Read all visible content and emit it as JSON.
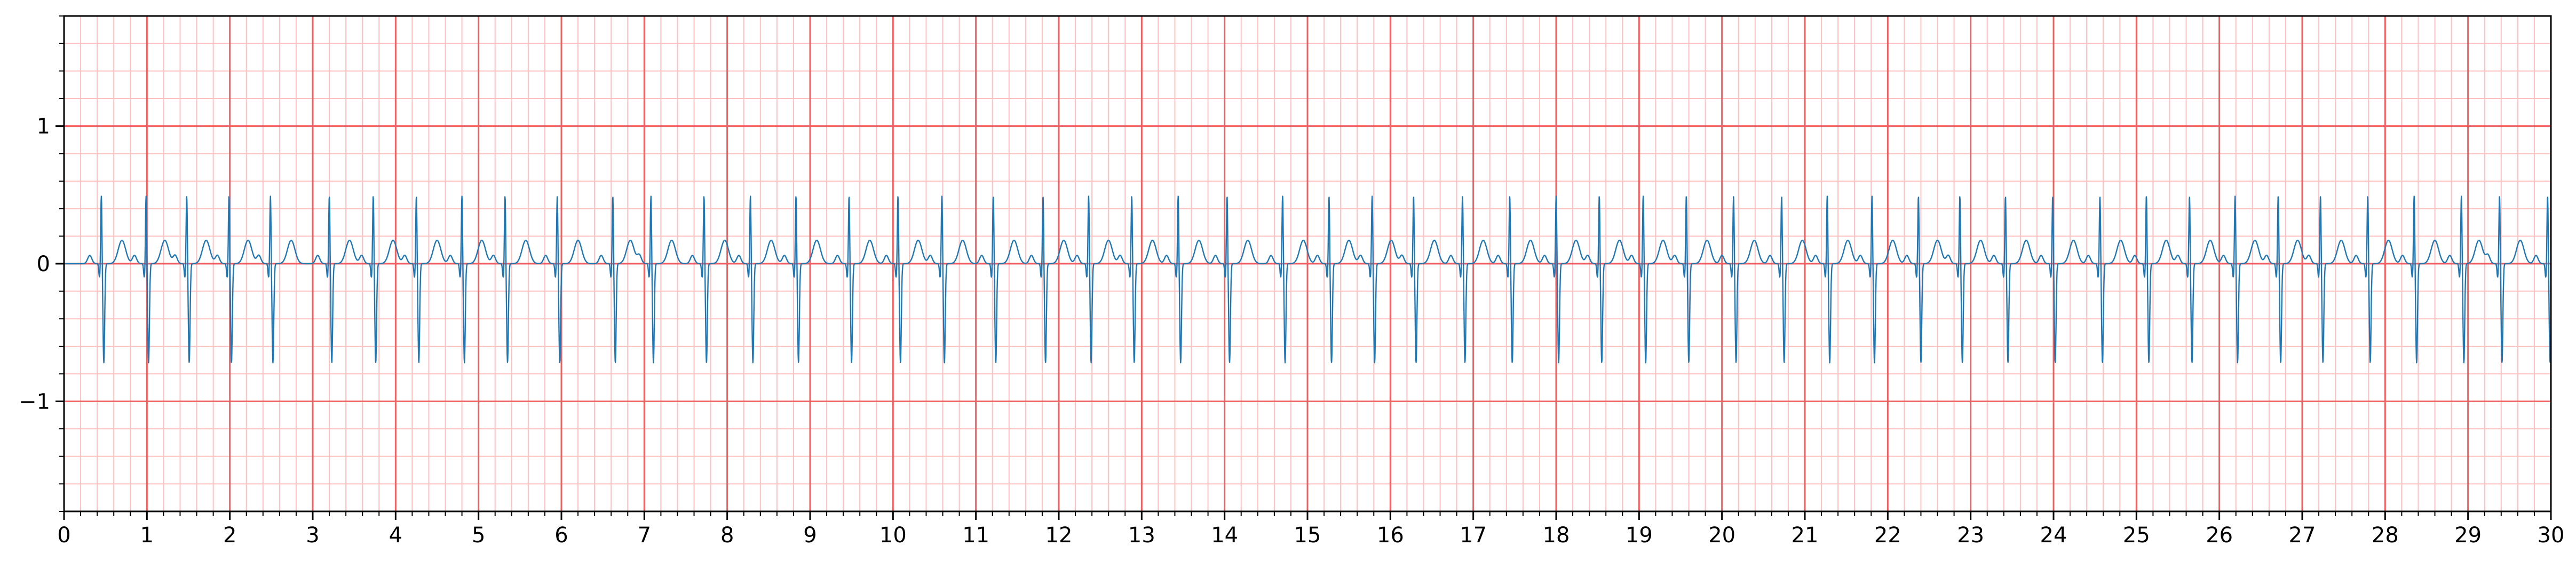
{
  "chart_data": {
    "type": "line",
    "title": "",
    "xlabel": "",
    "ylabel": "",
    "xlim": [
      0,
      30
    ],
    "ylim": [
      -1.8,
      1.8
    ],
    "grid": true,
    "legend": "none",
    "x_ticks": [
      0,
      1,
      2,
      3,
      4,
      5,
      6,
      7,
      8,
      9,
      10,
      11,
      12,
      13,
      14,
      15,
      16,
      17,
      18,
      19,
      20,
      21,
      22,
      23,
      24,
      25,
      26,
      27,
      28,
      29,
      30
    ],
    "x_tick_labels": [
      "0",
      "1",
      "2",
      "3",
      "4",
      "5",
      "6",
      "7",
      "8",
      "9",
      "10",
      "11",
      "12",
      "13",
      "14",
      "15",
      "16",
      "17",
      "18",
      "19",
      "20",
      "21",
      "22",
      "23",
      "24",
      "25",
      "26",
      "27",
      "28",
      "29",
      "30"
    ],
    "y_ticks": [
      -1,
      0,
      1
    ],
    "y_tick_labels": [
      "−1",
      "0",
      "1"
    ],
    "x_minor_step": 0.2,
    "y_minor_step": 0.2,
    "colors": {
      "trace": "#1f77b4",
      "major_grid": "#f06060",
      "minor_grid": "#ffc0c0"
    },
    "series": [
      {
        "beat_times": [
          0.45,
          0.99,
          1.48,
          1.99,
          2.49,
          3.2,
          3.73,
          4.25,
          4.8,
          5.32,
          5.95,
          6.62,
          7.08,
          7.72,
          8.28,
          8.83,
          9.47,
          10.06,
          10.59,
          11.21,
          11.81,
          12.36,
          12.88,
          13.44,
          14.03,
          14.7,
          15.26,
          15.78,
          16.28,
          16.87,
          17.44,
          18.0,
          18.52,
          19.05,
          19.57,
          20.14,
          20.72,
          21.27,
          21.81,
          22.37,
          22.87,
          23.42,
          23.99,
          24.56,
          25.12,
          25.64,
          26.19,
          26.71,
          27.22,
          27.79,
          28.35,
          28.92,
          29.38,
          29.96
        ],
        "r_peak": 0.5,
        "s_trough": -0.72,
        "t_peak": 0.17
      }
    ]
  }
}
